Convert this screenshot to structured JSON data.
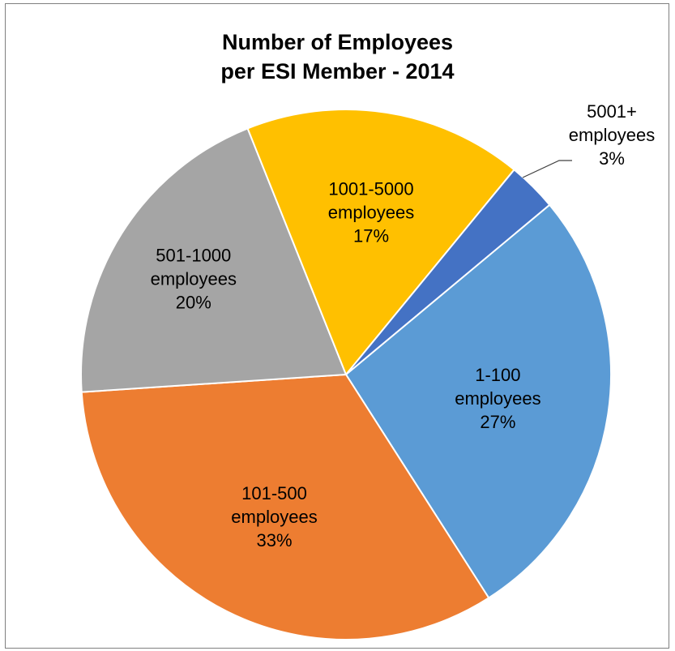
{
  "chart_data": {
    "type": "pie",
    "title": [
      "Number of Employees",
      "per ESI Member - 2014"
    ],
    "slices": [
      {
        "name": "1-100 employees",
        "label_lines": [
          "1-100",
          "employees",
          "27%"
        ],
        "value": 27,
        "color": "#5B9BD5"
      },
      {
        "name": "101-500 employees",
        "label_lines": [
          "101-500",
          "employees",
          "33%"
        ],
        "value": 33,
        "color": "#ED7D31"
      },
      {
        "name": "501-1000 employees",
        "label_lines": [
          "501-1000",
          "employees",
          "20%"
        ],
        "value": 20,
        "color": "#A5A5A5"
      },
      {
        "name": "1001-5000 employees",
        "label_lines": [
          "1001-5000",
          "employees",
          "17%"
        ],
        "value": 17,
        "color": "#FFC000"
      },
      {
        "name": "5001+ employees",
        "label_lines": [
          "5001+",
          "employees",
          "3%"
        ],
        "value": 3,
        "color": "#4472C4"
      }
    ],
    "legend": "none"
  }
}
